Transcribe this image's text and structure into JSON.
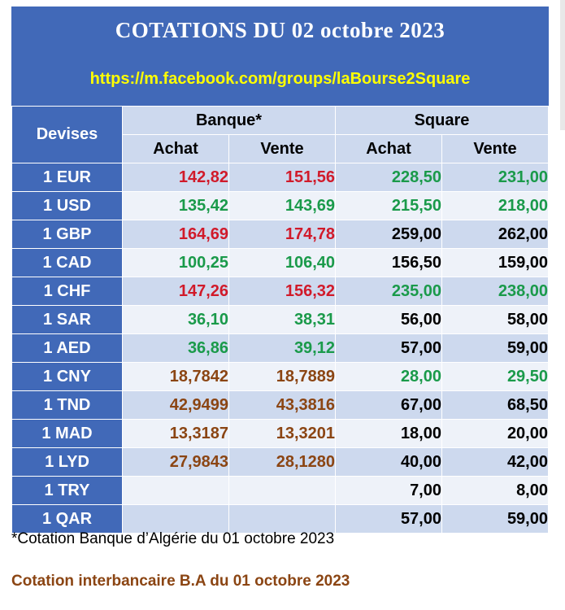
{
  "header": {
    "title": "COTATIONS DU 02 octobre 2023",
    "link": "https://m.facebook.com/groups/laBourse2Square"
  },
  "table": {
    "devises_label": "Devises",
    "banque_label": "Banque*",
    "square_label": "Square",
    "achat_label": "Achat",
    "vente_label": "Vente",
    "rows": [
      {
        "currency": "1 EUR",
        "b_achat": "142,82",
        "b_vente": "151,56",
        "s_achat": "228,50",
        "s_vente": "231,00"
      },
      {
        "currency": "1 USD",
        "b_achat": "135,42",
        "b_vente": "143,69",
        "s_achat": "215,50",
        "s_vente": "218,00"
      },
      {
        "currency": "1 GBP",
        "b_achat": "164,69",
        "b_vente": "174,78",
        "s_achat": "259,00",
        "s_vente": "262,00"
      },
      {
        "currency": "1 CAD",
        "b_achat": "100,25",
        "b_vente": "106,40",
        "s_achat": "156,50",
        "s_vente": "159,00"
      },
      {
        "currency": "1 CHF",
        "b_achat": "147,26",
        "b_vente": "156,32",
        "s_achat": "235,00",
        "s_vente": "238,00"
      },
      {
        "currency": "1 SAR",
        "b_achat": "36,10",
        "b_vente": "38,31",
        "s_achat": "56,00",
        "s_vente": "58,00"
      },
      {
        "currency": "1 AED",
        "b_achat": "36,86",
        "b_vente": "39,12",
        "s_achat": "57,00",
        "s_vente": "59,00"
      },
      {
        "currency": "1 CNY",
        "b_achat": "18,7842",
        "b_vente": "18,7889",
        "s_achat": "28,00",
        "s_vente": "29,50"
      },
      {
        "currency": "1 TND",
        "b_achat": "42,9499",
        "b_vente": "43,3816",
        "s_achat": "67,00",
        "s_vente": "68,50"
      },
      {
        "currency": "1 MAD",
        "b_achat": "13,3187",
        "b_vente": "13,3201",
        "s_achat": "18,00",
        "s_vente": "20,00"
      },
      {
        "currency": "1 LYD",
        "b_achat": "27,9843",
        "b_vente": "28,1280",
        "s_achat": "40,00",
        "s_vente": "42,00"
      },
      {
        "currency": "1 TRY",
        "b_achat": "",
        "b_vente": "",
        "s_achat": "7,00",
        "s_vente": "8,00"
      },
      {
        "currency": "1 QAR",
        "b_achat": "",
        "b_vente": "",
        "s_achat": "57,00",
        "s_vente": "59,00"
      }
    ]
  },
  "footnote": "*Cotation Banque d’Algérie du 01 octobre 2023",
  "footer": "Cotation interbancaire B.A du 01 octobre 2023",
  "colors": {
    "header_bg": "#4169b8",
    "title": "#ffffff",
    "link": "#ffff00",
    "red": "#d11a2a",
    "green": "#1a9a4a",
    "brown": "#8b4513",
    "black": "#000000"
  },
  "cell_colors": [
    [
      "red",
      "red",
      "green",
      "green"
    ],
    [
      "green",
      "green",
      "green",
      "green"
    ],
    [
      "red",
      "red",
      "black",
      "black"
    ],
    [
      "green",
      "green",
      "black",
      "black"
    ],
    [
      "red",
      "red",
      "green",
      "green"
    ],
    [
      "green",
      "green",
      "black",
      "black"
    ],
    [
      "green",
      "green",
      "black",
      "black"
    ],
    [
      "brown",
      "brown",
      "green",
      "green"
    ],
    [
      "brown",
      "brown",
      "black",
      "black"
    ],
    [
      "brown",
      "brown",
      "black",
      "black"
    ],
    [
      "brown",
      "brown",
      "black",
      "black"
    ],
    [
      "black",
      "black",
      "black",
      "black"
    ],
    [
      "black",
      "black",
      "black",
      "black"
    ]
  ]
}
